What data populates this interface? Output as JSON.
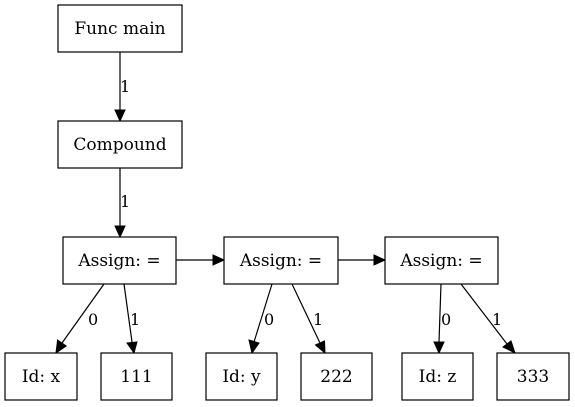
{
  "nodes": {
    "func_main": "Func main",
    "compound": "Compound",
    "assign1": "Assign: =",
    "assign2": "Assign: =",
    "assign3": "Assign: =",
    "id_x": "Id: x",
    "num_111": "111",
    "id_y": "Id: y",
    "num_222": "222",
    "id_z": "Id: z",
    "num_333": "333"
  },
  "edges": {
    "func_to_compound": "1",
    "compound_to_assign1": "1",
    "assign1_to_idx": "0",
    "assign1_to_111": "1",
    "assign2_to_idy": "0",
    "assign2_to_222": "1",
    "assign3_to_idz": "0",
    "assign3_to_333": "1"
  }
}
